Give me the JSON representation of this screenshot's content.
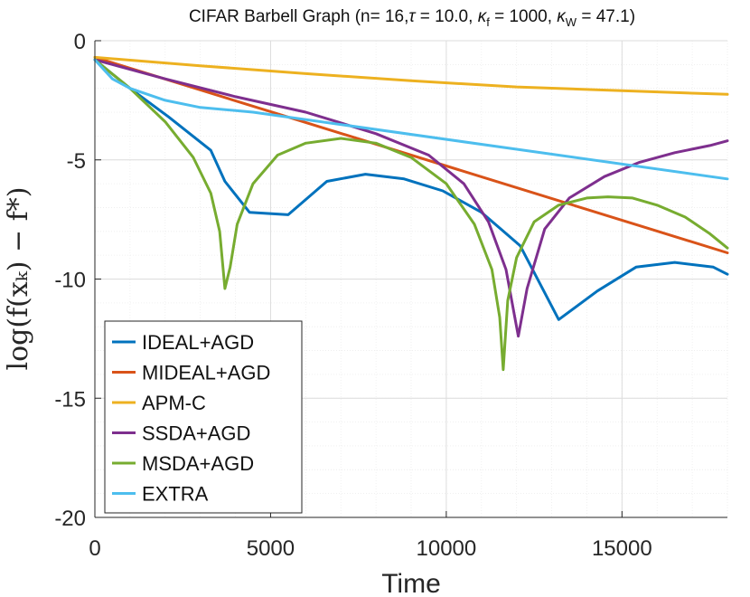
{
  "chart_data": {
    "type": "line",
    "title_parts": [
      "CIFAR Barbell Graph (n= 16,",
      "τ",
      " = 10.0, ",
      "κ",
      "f",
      " = 1000, ",
      "κ",
      "W",
      " = 47.1)"
    ],
    "xlabel": "Time",
    "ylabel": "log(f(x_k) − f*)",
    "ylabel_display": "log(f(xₖ) − f*)",
    "xlim": [
      0,
      18000
    ],
    "ylim": [
      -20,
      0
    ],
    "xticks": [
      0,
      5000,
      10000,
      15000
    ],
    "xtick_labels": [
      "0",
      "5000",
      "10000",
      "15000"
    ],
    "yticks": [
      0,
      -5,
      -10,
      -15,
      -20
    ],
    "ytick_labels": [
      "0",
      "-5",
      "-10",
      "-15",
      "-20"
    ],
    "grid": true,
    "legend_position": "bottom-left",
    "series": [
      {
        "name": "IDEAL+AGD",
        "color": "#0072BD",
        "x": [
          0,
          1000,
          2100,
          3300,
          3700,
          4400,
          5500,
          6600,
          7700,
          8800,
          9900,
          11000,
          12100,
          13200,
          14300,
          15400,
          16500,
          17600,
          18000
        ],
        "y": [
          -0.8,
          -2.0,
          -3.2,
          -4.6,
          -5.9,
          -7.2,
          -7.3,
          -5.9,
          -5.6,
          -5.8,
          -6.3,
          -7.2,
          -8.6,
          -11.7,
          -10.5,
          -9.5,
          -9.3,
          -9.5,
          -9.8
        ]
      },
      {
        "name": "MIDEAL+AGD",
        "color": "#D95319",
        "x": [
          0,
          18000
        ],
        "y": [
          -0.7,
          -8.9
        ]
      },
      {
        "name": "APM-C",
        "color": "#EDB120",
        "x": [
          0,
          3000,
          6000,
          9000,
          12000,
          15000,
          18000
        ],
        "y": [
          -0.7,
          -1.05,
          -1.38,
          -1.68,
          -1.94,
          -2.1,
          -2.25
        ]
      },
      {
        "name": "SSDA+AGD",
        "color": "#7E2F8E",
        "x": [
          0,
          2000,
          4000,
          6000,
          8000,
          9500,
          10500,
          11200,
          11700,
          11950,
          12050,
          12300,
          12800,
          13500,
          14500,
          15500,
          16500,
          17500,
          18000
        ],
        "y": [
          -0.8,
          -1.6,
          -2.35,
          -3.0,
          -3.9,
          -4.8,
          -6.0,
          -7.6,
          -9.6,
          -11.6,
          -12.4,
          -10.4,
          -7.9,
          -6.6,
          -5.7,
          -5.1,
          -4.7,
          -4.4,
          -4.2
        ]
      },
      {
        "name": "MSDA+AGD",
        "color": "#77AC30",
        "x": [
          0,
          1000,
          2000,
          2800,
          3300,
          3550,
          3700,
          3850,
          4050,
          4500,
          5200,
          6000,
          7000,
          8000,
          9000,
          10000,
          10800,
          11300,
          11520,
          11620,
          11750,
          12000,
          12500,
          13200,
          14000,
          14600,
          15300,
          16000,
          16800,
          17500,
          18000
        ],
        "y": [
          -0.8,
          -2.0,
          -3.4,
          -4.9,
          -6.4,
          -8.0,
          -10.4,
          -9.5,
          -7.7,
          -6.0,
          -4.8,
          -4.3,
          -4.1,
          -4.3,
          -4.9,
          -6.0,
          -7.7,
          -9.6,
          -11.6,
          -13.8,
          -10.9,
          -9.1,
          -7.6,
          -6.9,
          -6.6,
          -6.55,
          -6.6,
          -6.9,
          -7.4,
          -8.1,
          -8.7
        ]
      },
      {
        "name": "EXTRA",
        "color": "#4DBEEE",
        "x": [
          0,
          500,
          1000,
          2000,
          3000,
          4500,
          18000
        ],
        "y": [
          -0.8,
          -1.6,
          -2.0,
          -2.5,
          -2.8,
          -3.0,
          -5.8
        ]
      }
    ]
  }
}
